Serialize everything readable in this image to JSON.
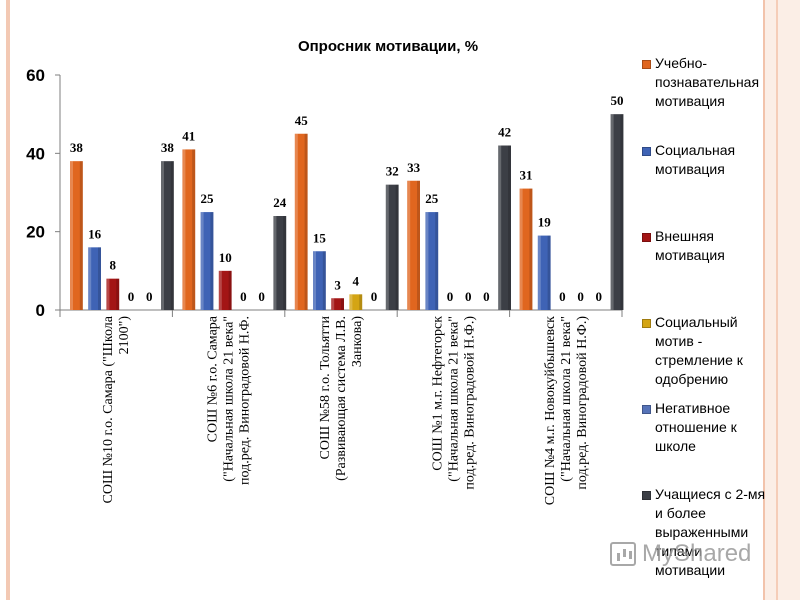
{
  "chart_data": {
    "type": "bar",
    "title": "Опросник мотивации, %",
    "ylim": [
      0,
      60
    ],
    "yticks": [
      0,
      20,
      40,
      60
    ],
    "categories": [
      "СОШ №10 г.о. Самара (\"Школа 2100\")",
      "СОШ №6 г.о. Самара (\"Начальная школа 21 века\" под.ред. Виноградовой Н.Ф.",
      "СОШ №58 г.о. Тольятти (Развивающая система Л.В. Занкова)",
      "СОШ №1 м.г. Нефтегорск (\"Начальная школа 21 века\" под.ред. Виноградовой Н.Ф.)",
      "СОШ №4 м.г. Новокуйбышевск (\"Начальная школа 21 века\" под.ред. Виноградовой Н.Ф.)"
    ],
    "series": [
      {
        "name": "Учебно-познавательная мотивация",
        "color": "#e0661f",
        "values": [
          38,
          41,
          45,
          33,
          31
        ]
      },
      {
        "name": "Социальная мотивация",
        "color": "#3f63b5",
        "values": [
          16,
          25,
          15,
          25,
          19
        ]
      },
      {
        "name": "Внешняя мотивация",
        "color": "#a31515",
        "values": [
          8,
          10,
          3,
          0,
          0
        ]
      },
      {
        "name": "Социальный мотив - стремление к одобрению",
        "color": "#d4a514",
        "values": [
          0,
          0,
          4,
          0,
          0
        ]
      },
      {
        "name": "Негативное отношение к школе",
        "color": "#5673b8",
        "values": [
          0,
          0,
          0,
          0,
          0
        ]
      },
      {
        "name": "Учащиеся с 2-мя и более выраженными типами мотивации",
        "color": "#3c3f46",
        "values": [
          38,
          24,
          32,
          42,
          50
        ]
      }
    ],
    "legend_position": "right",
    "grid": false
  },
  "legend": {
    "labels": [
      "Учебно-познавательная мотивация",
      "Социальная мотивация",
      "Внешняя мотивация",
      "Социальный мотив - стремление к одобрению",
      "Негативное отношение к школе",
      "Учащиеся с 2-мя и более выраженными типами мотивации"
    ]
  },
  "watermark": {
    "text": "MyShared",
    "icon": "presentation-chart-icon"
  }
}
